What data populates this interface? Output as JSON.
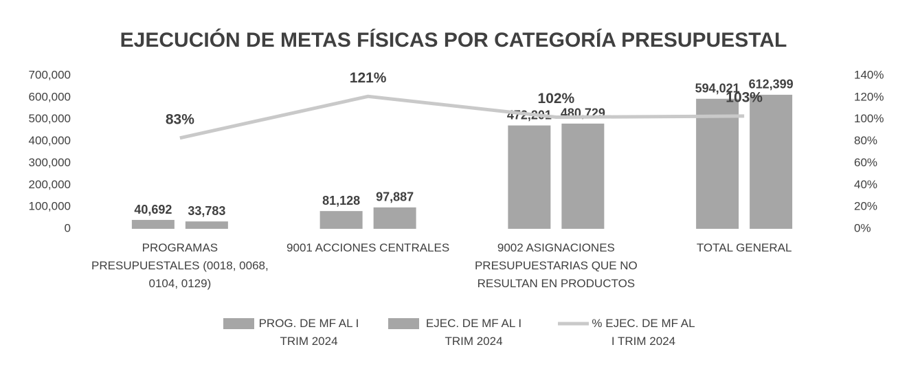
{
  "chart_data": {
    "type": "bar_line",
    "title": "EJECUCIÓN DE METAS FÍSICAS POR CATEGORÍA PRESUPUESTAL",
    "categories": [
      "PROGRAMAS PRESUPUESTALES (0018, 0068, 0104, 0129)",
      "9001 ACCIONES CENTRALES",
      "9002 ASIGNACIONES PRESUPUESTARIAS QUE NO RESULTAN EN PRODUCTOS",
      "TOTAL GENERAL"
    ],
    "series": [
      {
        "name": "PROG. DE MF AL I TRIM 2024",
        "type": "bar",
        "color": "#a6a6a6",
        "values": [
          40692,
          81128,
          472201,
          594021
        ],
        "value_labels": [
          "40,692",
          "81,128",
          "472,201",
          "594,021"
        ]
      },
      {
        "name": "EJEC. DE MF AL I TRIM 2024",
        "type": "bar",
        "color": "#a6a6a6",
        "values": [
          33783,
          97887,
          480729,
          612399
        ],
        "value_labels": [
          "33,783",
          "97,887",
          "480,729",
          "612,399"
        ]
      },
      {
        "name": "% EJEC. DE MF AL I TRIM 2024",
        "type": "line",
        "axis": "y2",
        "color": "#c9c9c9",
        "values": [
          83,
          121,
          102,
          103
        ],
        "value_labels": [
          "83%",
          "121%",
          "102%",
          "103%"
        ]
      }
    ],
    "ylim": [
      0,
      700000
    ],
    "yticks": [
      0,
      {
        "value": 100000,
        "label": "100,000"
      },
      {
        "value": 200000,
        "label": "200,000"
      },
      {
        "value": 300000,
        "label": "300,000"
      },
      {
        "value": 400000,
        "label": "400,000"
      },
      {
        "value": 500000,
        "label": "500,000"
      },
      {
        "value": 600000,
        "label": "600,000"
      },
      {
        "value": 700000,
        "label": "700,000"
      }
    ],
    "y2lim": [
      0,
      140
    ],
    "y2ticks": [
      {
        "value": 0,
        "label": "0%"
      },
      {
        "value": 20,
        "label": "20%"
      },
      {
        "value": 40,
        "label": "40%"
      },
      {
        "value": 60,
        "label": "60%"
      },
      {
        "value": 80,
        "label": "80%"
      },
      {
        "value": 100,
        "label": "100%"
      },
      {
        "value": 120,
        "label": "120%"
      },
      {
        "value": 140,
        "label": "140%"
      }
    ],
    "grid": false
  }
}
